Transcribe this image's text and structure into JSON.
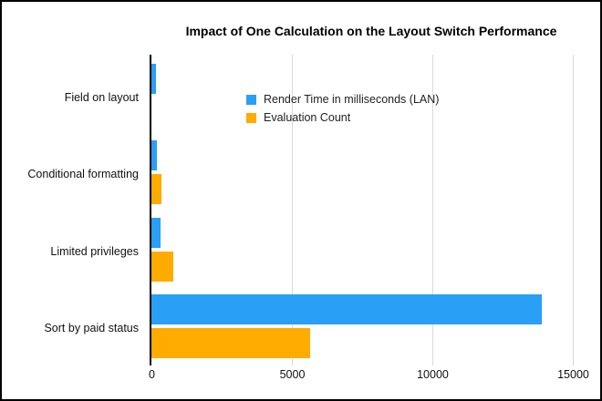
{
  "chart_data": {
    "type": "bar",
    "orientation": "horizontal",
    "title": "Impact of One Calculation on the Layout Switch Performance",
    "categories": [
      "Field on layout",
      "Conditional formatting",
      "Limited privileges",
      "Sort by paid status"
    ],
    "series": [
      {
        "name": "Render Time in milliseconds (LAN)",
        "color": "#299FF5",
        "values": [
          170,
          210,
          320,
          13900
        ]
      },
      {
        "name": "Evaluation Count",
        "color": "#FFAB00",
        "values": [
          1,
          350,
          770,
          5660
        ]
      }
    ],
    "x_ticks": [
      0,
      5000,
      10000,
      15000
    ],
    "x_tick_labels": [
      "0",
      "5000",
      "10000",
      "15000"
    ],
    "xlim": [
      0,
      15780
    ],
    "grid": true,
    "legend_position": "top-inside",
    "colors": {
      "gridline": "#d9d9d9",
      "axis_line": "#000000",
      "title_text": "#000000",
      "label_text": "#111111"
    }
  }
}
